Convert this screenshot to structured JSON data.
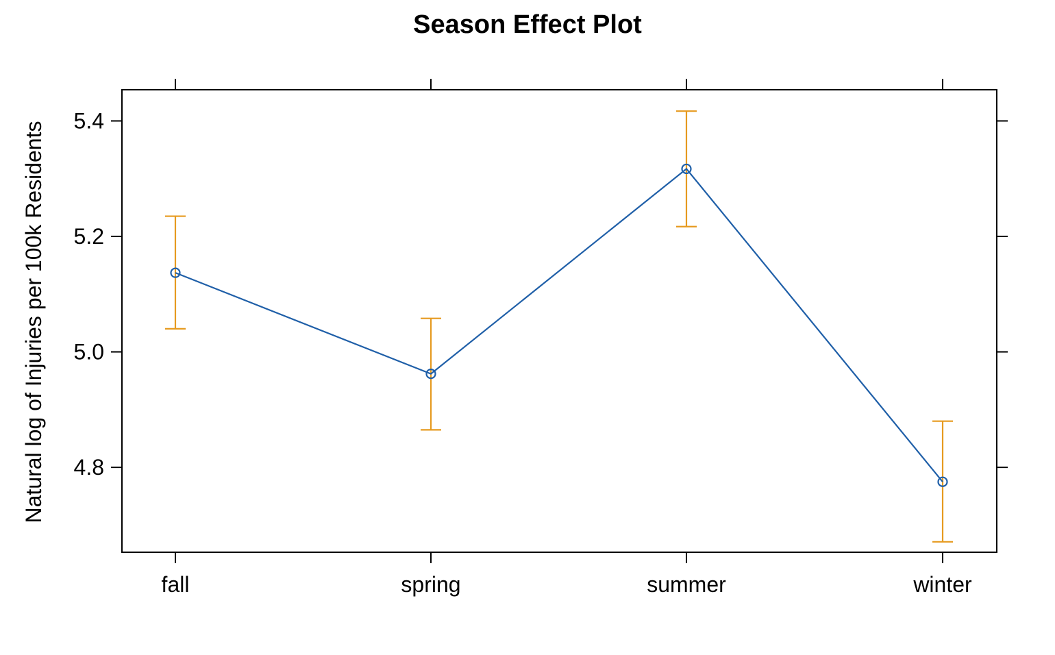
{
  "chart_data": {
    "type": "line",
    "title": "Season Effect Plot",
    "xlabel": "",
    "ylabel": "Natural log of Injuries per 100k Residents",
    "categories": [
      "fall",
      "spring",
      "summer",
      "winter"
    ],
    "series": [
      {
        "values": [
          5.137,
          4.962,
          5.317,
          4.775
        ],
        "lower": [
          5.04,
          4.865,
          5.217,
          4.671
        ],
        "upper": [
          5.235,
          5.058,
          5.417,
          4.88
        ]
      }
    ],
    "yticks": [
      "4.8",
      "5.0",
      "5.2",
      "5.4"
    ],
    "ylim": [
      4.653,
      5.454
    ],
    "grid": false,
    "legend": "none",
    "colors": {
      "line": "#1f5fa8",
      "error_bar": "#e69a1f",
      "axis": "#000000"
    }
  }
}
